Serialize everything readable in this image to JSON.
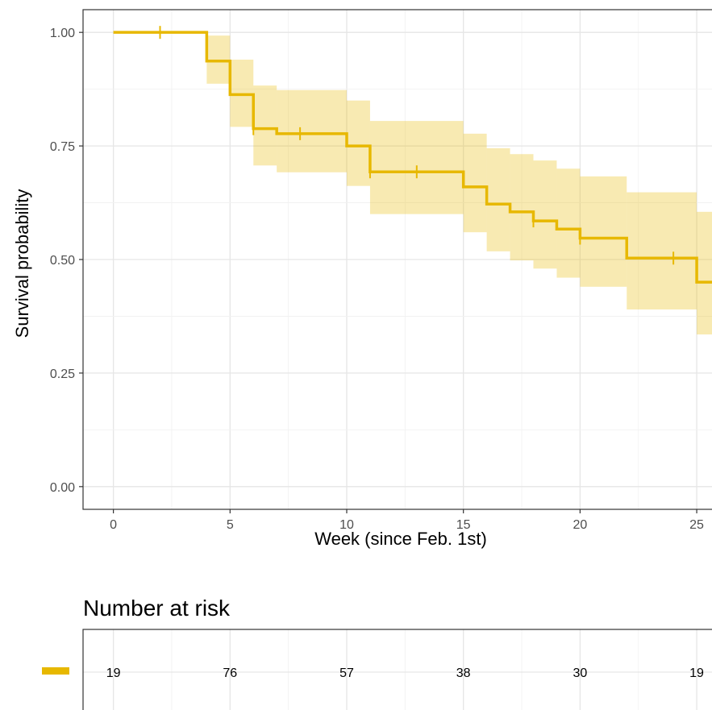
{
  "chart_data": {
    "type": "line",
    "subtype": "kaplan-meier-step",
    "xlabel": "Week (since Feb. 1st)",
    "ylabel": "Survival probability",
    "xlim": [
      -1.3,
      26
    ],
    "ylim": [
      -0.05,
      1.05
    ],
    "x_ticks": [
      0,
      5,
      10,
      15,
      20,
      25
    ],
    "x_tick_labels": [
      "0",
      "5",
      "10",
      "15",
      "20",
      "25"
    ],
    "y_ticks": [
      0,
      0.25,
      0.5,
      0.75,
      1.0
    ],
    "y_tick_labels": [
      "0.00",
      "0.25",
      "0.50",
      "0.75",
      "1.00"
    ],
    "grid": true,
    "color": "#E7B800",
    "series": [
      {
        "steps": [
          {
            "x": 0,
            "y": 1.0,
            "lower": 1.0,
            "upper": 1.0
          },
          {
            "x": 4,
            "y": 0.937,
            "lower": 0.887,
            "upper": 0.993
          },
          {
            "x": 5,
            "y": 0.863,
            "lower": 0.792,
            "upper": 0.94
          },
          {
            "x": 6,
            "y": 0.788,
            "lower": 0.707,
            "upper": 0.883
          },
          {
            "x": 7,
            "y": 0.777,
            "lower": 0.692,
            "upper": 0.873
          },
          {
            "x": 10,
            "y": 0.75,
            "lower": 0.662,
            "upper": 0.85
          },
          {
            "x": 11,
            "y": 0.693,
            "lower": 0.6,
            "upper": 0.805
          },
          {
            "x": 15,
            "y": 0.66,
            "lower": 0.56,
            "upper": 0.777
          },
          {
            "x": 16,
            "y": 0.622,
            "lower": 0.518,
            "upper": 0.745
          },
          {
            "x": 17,
            "y": 0.605,
            "lower": 0.498,
            "upper": 0.732
          },
          {
            "x": 18,
            "y": 0.585,
            "lower": 0.48,
            "upper": 0.718
          },
          {
            "x": 19,
            "y": 0.567,
            "lower": 0.46,
            "upper": 0.7
          },
          {
            "x": 20,
            "y": 0.547,
            "lower": 0.44,
            "upper": 0.683
          },
          {
            "x": 22,
            "y": 0.503,
            "lower": 0.39,
            "upper": 0.648
          },
          {
            "x": 25,
            "y": 0.45,
            "lower": 0.335,
            "upper": 0.605
          }
        ],
        "end_x": 26,
        "censored": [
          {
            "x": 2,
            "y": 1.0
          },
          {
            "x": 6,
            "y": 0.788
          },
          {
            "x": 8,
            "y": 0.777
          },
          {
            "x": 11,
            "y": 0.693
          },
          {
            "x": 13,
            "y": 0.693
          },
          {
            "x": 18,
            "y": 0.585
          },
          {
            "x": 20,
            "y": 0.547
          },
          {
            "x": 24,
            "y": 0.503
          }
        ]
      }
    ]
  },
  "risk_table": {
    "title": "Number at risk",
    "times": [
      0,
      5,
      10,
      15,
      20,
      25
    ],
    "counts": [
      "19",
      "76",
      "57",
      "38",
      "30",
      "19"
    ]
  }
}
